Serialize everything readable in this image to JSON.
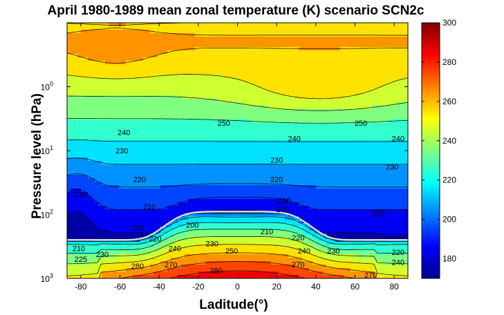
{
  "chart_data": {
    "type": "heatmap",
    "title": "April 1980-1989 mean zonal temperature (K) scenario SCN2c",
    "xlabel": "Laditude(°)",
    "ylabel": "Pressure level (hPa)",
    "x_ticks": [
      -80,
      -60,
      -40,
      -20,
      0,
      20,
      40,
      60,
      80
    ],
    "xlim": [
      -87,
      87
    ],
    "y_scale": "log",
    "y_reversed": true,
    "ylim": [
      0.1,
      1000
    ],
    "y_ticks": [
      {
        "value": 1,
        "base": "10",
        "exp": "0"
      },
      {
        "value": 10,
        "base": "10",
        "exp": "1"
      },
      {
        "value": 100,
        "base": "10",
        "exp": "2"
      },
      {
        "value": 1000,
        "base": "10",
        "exp": "3"
      }
    ],
    "colorbar": {
      "range": [
        170,
        300
      ],
      "ticks": [
        "180",
        "200",
        "220",
        "240",
        "260",
        "280",
        "300"
      ],
      "tick_values": [
        180,
        200,
        220,
        240,
        260,
        280,
        300
      ]
    },
    "contour_interval": 10,
    "grid": false,
    "tropopause_line_color": "#d8d8d8",
    "contour_labels": [
      {
        "text": "240",
        "lat": -58,
        "p": 5.2
      },
      {
        "text": "250",
        "lat": -7,
        "p": 3.7
      },
      {
        "text": "240",
        "lat": 29,
        "p": 6.5
      },
      {
        "text": "250",
        "lat": 63,
        "p": 3.7
      },
      {
        "text": "240",
        "lat": 82,
        "p": 6.5
      },
      {
        "text": "230",
        "lat": -59,
        "p": 10
      },
      {
        "text": "230",
        "lat": 20,
        "p": 14
      },
      {
        "text": "230",
        "lat": 79,
        "p": 18
      },
      {
        "text": "220",
        "lat": -50,
        "p": 28
      },
      {
        "text": "220",
        "lat": 20,
        "p": 28
      },
      {
        "text": "210",
        "lat": -80,
        "p": 48
      },
      {
        "text": "210",
        "lat": -45,
        "p": 75
      },
      {
        "text": "210",
        "lat": 24,
        "p": 60
      },
      {
        "text": "220",
        "lat": 72,
        "p": 95
      },
      {
        "text": "200",
        "lat": 23,
        "p": 83
      },
      {
        "text": "200",
        "lat": -23,
        "p": 145
      },
      {
        "text": "210",
        "lat": -51,
        "p": 160
      },
      {
        "text": "210",
        "lat": 15,
        "p": 185
      },
      {
        "text": "220",
        "lat": -42,
        "p": 240
      },
      {
        "text": "220",
        "lat": 31,
        "p": 230
      },
      {
        "text": "230",
        "lat": -13,
        "p": 285
      },
      {
        "text": "240",
        "lat": -32,
        "p": 340
      },
      {
        "text": "250",
        "lat": -3,
        "p": 370
      },
      {
        "text": "240",
        "lat": 34,
        "p": 370
      },
      {
        "text": "230",
        "lat": 49,
        "p": 370
      },
      {
        "text": "220",
        "lat": 82,
        "p": 390
      },
      {
        "text": "210",
        "lat": -81,
        "p": 340
      },
      {
        "text": "225",
        "lat": -80,
        "p": 500
      },
      {
        "text": "230",
        "lat": -69,
        "p": 420
      },
      {
        "text": "270",
        "lat": -34,
        "p": 610
      },
      {
        "text": "280",
        "lat": -51,
        "p": 640
      },
      {
        "text": "280",
        "lat": -11,
        "p": 750
      },
      {
        "text": "270",
        "lat": 31,
        "p": 600
      },
      {
        "text": "240",
        "lat": 82,
        "p": 560
      },
      {
        "text": "270",
        "lat": 68,
        "p": 880
      }
    ]
  }
}
